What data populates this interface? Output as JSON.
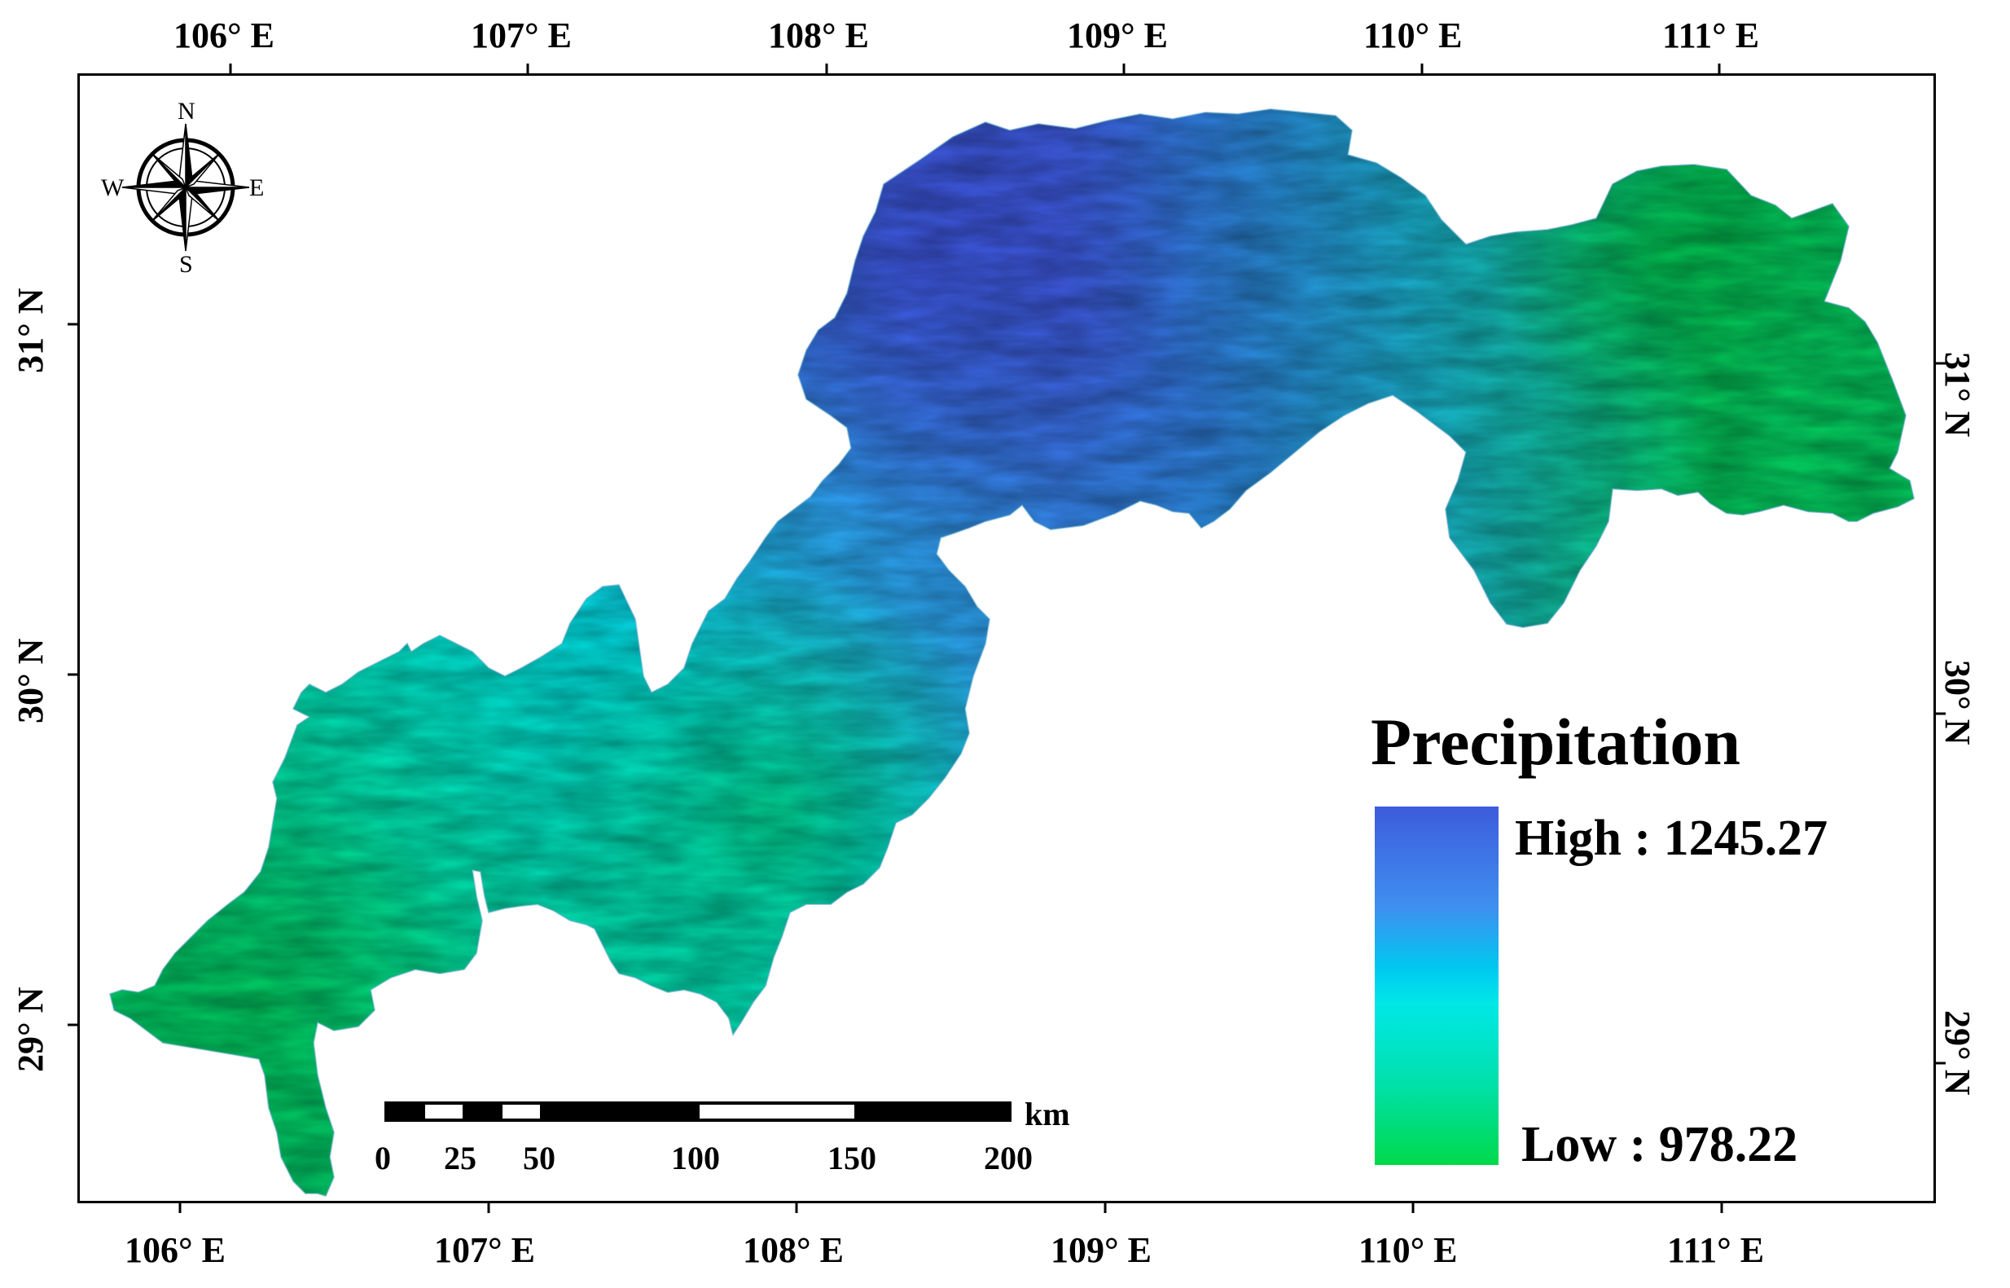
{
  "map": {
    "top_lon_labels": [
      "106° E",
      "107° E",
      "108° E",
      "109° E",
      "110° E",
      "111° E"
    ],
    "bottom_lon_labels": [
      "106° E",
      "107° E",
      "108° E",
      "109° E",
      "110° E",
      "111° E"
    ],
    "left_lat_labels": [
      "31° N",
      "30° N",
      "29° N"
    ],
    "right_lat_labels": [
      "31° N",
      "30° N",
      "29° N"
    ],
    "north_arrow": {
      "n": "N",
      "s": "S",
      "e": "E",
      "w": "W"
    },
    "legend": {
      "title": "Precipitation",
      "high_label": "High : 1245.27",
      "low_label": "Low : 978.22",
      "high_color": "#3d5bdc",
      "mid_color": "#00e8e8",
      "low_color": "#00d94a"
    },
    "scale_bar": {
      "unit": "km",
      "ticks": [
        "0",
        "25",
        "50",
        "100",
        "150",
        "200"
      ]
    }
  }
}
